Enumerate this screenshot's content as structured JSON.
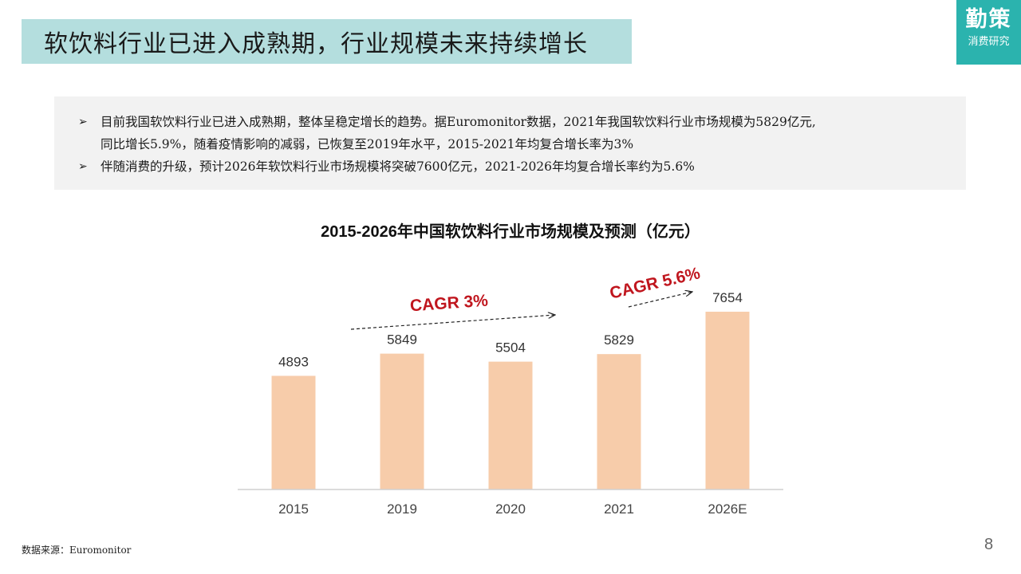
{
  "slide": {
    "title": "软饮料行业已进入成熟期，行业规模未来持续增长",
    "brand_name": "勤策",
    "brand_sub": "消费研究",
    "bullets": [
      {
        "marker": "➢",
        "line1": "目前我国软饮料行业已进入成熟期，整体呈稳定增长的趋势。据Euromonitor数据，2021年我国软饮料行业市场规模为5829亿元,",
        "line2": "同比增长5.9%，随着疫情影响的减弱，已恢复至2019年水平，2015-2021年均复合增长率为3%"
      },
      {
        "marker": "➢",
        "line1": "伴随消费的升级，预计2026年软饮料行业市场规模将突破7600亿元，2021-2026年均复合增长率约为5.6%"
      }
    ],
    "source": "数据来源：Euromonitor",
    "page_number": "8"
  },
  "chart_data": {
    "type": "bar",
    "title": "2015-2026年中国软饮料行业市场规模及预测（亿元）",
    "categories": [
      "2015",
      "2019",
      "2020",
      "2021",
      "2026E"
    ],
    "values": [
      4893,
      5849,
      5504,
      5829,
      7654
    ],
    "bar_color": "#f7ccaa",
    "ylim": [
      0,
      7654
    ],
    "grid": false,
    "annotations": [
      {
        "text": "CAGR 3%",
        "color": "#c0161e"
      },
      {
        "text": "CAGR 5.6%",
        "color": "#c0161e"
      }
    ]
  }
}
